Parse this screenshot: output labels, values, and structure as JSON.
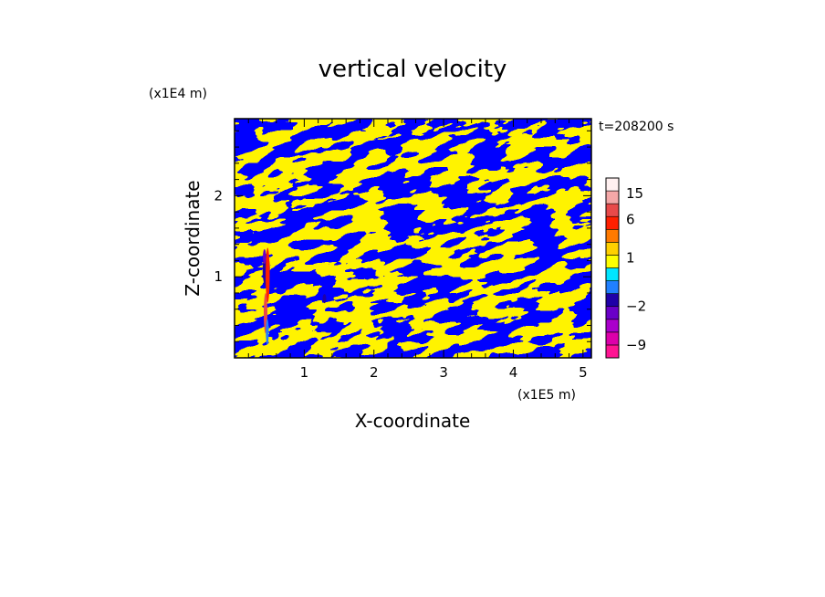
{
  "chart_data": {
    "type": "heatmap",
    "title": "vertical velocity",
    "xlabel": "X-coordinate",
    "ylabel": "Z-coordinate",
    "x_unit": "(x1E5 m)",
    "y_unit": "(x1E4 m)",
    "time_label": "t=208200 s",
    "xlim": [
      0,
      5.12
    ],
    "ylim": [
      0,
      2.95
    ],
    "x_ticks": [
      1,
      2,
      3,
      4,
      5
    ],
    "x_tick_labels": [
      "1",
      "2",
      "3",
      "4",
      "5"
    ],
    "y_ticks": [
      1,
      2
    ],
    "y_tick_labels": [
      "1",
      "2"
    ],
    "colorbar": {
      "boundaries": [
        -12,
        -9,
        -6,
        -4,
        -2,
        -1,
        0,
        1,
        2,
        4,
        6,
        10,
        15,
        20,
        30
      ],
      "colors": [
        "#ff1493",
        "#dd00aa",
        "#aa00cc",
        "#6a00c8",
        "#1f00a8",
        "#2080ff",
        "#00e5ff",
        "#ffff00",
        "#ffd000",
        "#ff7a00",
        "#ff2000",
        "#e84a4a",
        "#f4a8a8",
        "#fff0f0"
      ],
      "tick_values": [
        15,
        6,
        1,
        -2,
        -9
      ],
      "tick_labels": [
        "15",
        "6",
        "1",
        "−2",
        "−9"
      ]
    },
    "dominant_colors": {
      "negative": "#00e5ff",
      "positive": "#ffff00"
    },
    "grid": false
  }
}
